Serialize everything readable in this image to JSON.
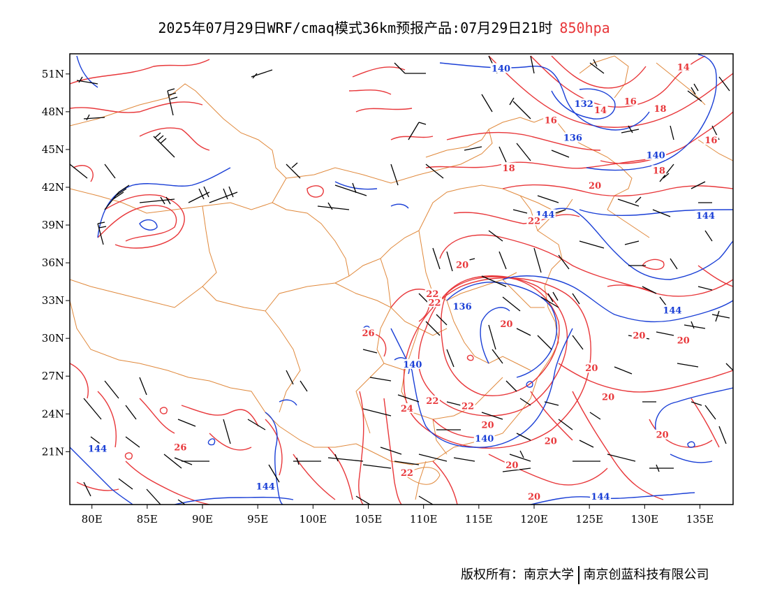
{
  "title": "2025年07月29日WRF/cmaq模式36km预报产品:07月29日21时",
  "level": "850hpa",
  "footer": {
    "copyright": "版权所有：南京大学",
    "company": "南京创蓝科技有限公司"
  },
  "colors": {
    "temperature": "#e8373a",
    "geopotential": "#1a3fd6",
    "border": "#e0893c",
    "wind": "#000000",
    "level_text": "#e8373a"
  },
  "axes": {
    "lat_ticks": [
      "51N",
      "48N",
      "45N",
      "42N",
      "39N",
      "36N",
      "33N",
      "30N",
      "27N",
      "24N",
      "21N"
    ],
    "lon_ticks": [
      "80E",
      "85E",
      "90E",
      "95E",
      "100E",
      "105E",
      "110E",
      "115E",
      "120E",
      "125E",
      "130E",
      "135E"
    ]
  },
  "contour_labels": {
    "geopotential": [
      {
        "text": "140",
        "lon": 117,
        "lat": 51.3
      },
      {
        "text": "132",
        "lon": 124.5,
        "lat": 48.5
      },
      {
        "text": "136",
        "lon": 123.5,
        "lat": 45.8
      },
      {
        "text": "140",
        "lon": 131,
        "lat": 44.4
      },
      {
        "text": "144",
        "lon": 121,
        "lat": 39.7
      },
      {
        "text": "144",
        "lon": 135.5,
        "lat": 39.6
      },
      {
        "text": "136",
        "lon": 113.5,
        "lat": 32.4
      },
      {
        "text": "144",
        "lon": 132.5,
        "lat": 32.1
      },
      {
        "text": "140",
        "lon": 109,
        "lat": 27.8
      },
      {
        "text": "140",
        "lon": 115.5,
        "lat": 21.9
      },
      {
        "text": "144",
        "lon": 80.5,
        "lat": 21.1
      },
      {
        "text": "144",
        "lon": 95.7,
        "lat": 18.1
      },
      {
        "text": "144",
        "lon": 126,
        "lat": 17.3
      }
    ],
    "temperature": [
      {
        "text": "14",
        "lon": 133.5,
        "lat": 51.4
      },
      {
        "text": "14",
        "lon": 126,
        "lat": 48.0
      },
      {
        "text": "16",
        "lon": 128.7,
        "lat": 48.7
      },
      {
        "text": "18",
        "lon": 131.4,
        "lat": 48.1
      },
      {
        "text": "16",
        "lon": 121.5,
        "lat": 47.2
      },
      {
        "text": "16",
        "lon": 136,
        "lat": 45.6
      },
      {
        "text": "18",
        "lon": 131.3,
        "lat": 43.2
      },
      {
        "text": "18",
        "lon": 117.7,
        "lat": 43.4
      },
      {
        "text": "20",
        "lon": 125.5,
        "lat": 42.0
      },
      {
        "text": "22",
        "lon": 120,
        "lat": 39.2
      },
      {
        "text": "20",
        "lon": 113.5,
        "lat": 35.7
      },
      {
        "text": "22",
        "lon": 110.8,
        "lat": 33.4
      },
      {
        "text": "22",
        "lon": 111,
        "lat": 32.7
      },
      {
        "text": "20",
        "lon": 117.5,
        "lat": 31.0
      },
      {
        "text": "26",
        "lon": 105,
        "lat": 30.3
      },
      {
        "text": "20",
        "lon": 129.5,
        "lat": 30.1
      },
      {
        "text": "20",
        "lon": 133.5,
        "lat": 29.7
      },
      {
        "text": "20",
        "lon": 125.2,
        "lat": 27.5
      },
      {
        "text": "24",
        "lon": 108.5,
        "lat": 24.3
      },
      {
        "text": "22",
        "lon": 110.8,
        "lat": 24.9
      },
      {
        "text": "22",
        "lon": 114,
        "lat": 24.5
      },
      {
        "text": "20",
        "lon": 115.8,
        "lat": 23.0
      },
      {
        "text": "20",
        "lon": 126.7,
        "lat": 25.2
      },
      {
        "text": "20",
        "lon": 121.5,
        "lat": 21.7
      },
      {
        "text": "20",
        "lon": 131.6,
        "lat": 22.2
      },
      {
        "text": "20",
        "lon": 118,
        "lat": 19.8
      },
      {
        "text": "22",
        "lon": 108.5,
        "lat": 19.2
      },
      {
        "text": "20",
        "lon": 120,
        "lat": 17.3
      },
      {
        "text": "26",
        "lon": 88,
        "lat": 21.2
      }
    ]
  }
}
